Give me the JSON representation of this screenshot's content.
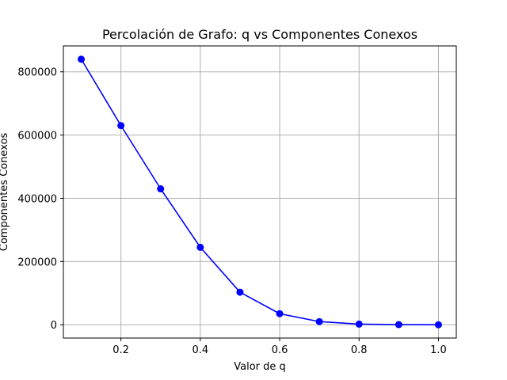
{
  "chart_data": {
    "type": "line",
    "title": "Percolación de Grafo: q vs Componentes Conexos",
    "xlabel": "Valor de q",
    "ylabel": "Componentes Conexos",
    "xlim": [
      0.055,
      1.045
    ],
    "ylim": [
      -42000,
      882000
    ],
    "xticks": [
      0.2,
      0.4,
      0.6,
      0.8,
      1.0
    ],
    "xtick_labels": [
      "0.2",
      "0.4",
      "0.6",
      "0.8",
      "1.0"
    ],
    "yticks": [
      0,
      200000,
      400000,
      600000,
      800000
    ],
    "ytick_labels": [
      "0",
      "200000",
      "400000",
      "600000",
      "800000"
    ],
    "grid": true,
    "series": [
      {
        "x": [
          0.1,
          0.2,
          0.3,
          0.4,
          0.5,
          0.6,
          0.7,
          0.8,
          0.9,
          1.0
        ],
        "y": [
          840000,
          630000,
          430000,
          245000,
          103000,
          35000,
          10000,
          2000,
          500,
          0
        ],
        "color": "#0000ff",
        "marker": "circle"
      }
    ]
  }
}
